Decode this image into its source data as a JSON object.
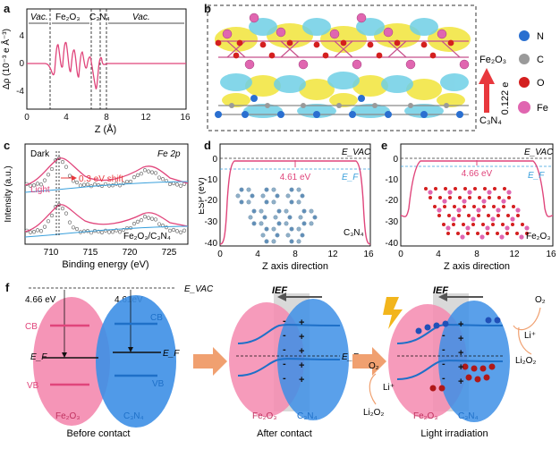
{
  "panel_labels": {
    "a": "a",
    "b": "b",
    "c": "c",
    "d": "d",
    "e": "e",
    "f": "f"
  },
  "colors": {
    "pink": "#e0457b",
    "blue": "#3aa0dc",
    "cyan": "#4fb6e8",
    "red": "#e8383d",
    "orange": "#f0a070"
  },
  "panel_a": {
    "ylabel": "Δρ (10⁻³ e Å⁻³)",
    "xlabel": "Z (Å)",
    "yticks": [
      "-4",
      "0",
      "4"
    ],
    "xticks": [
      "0",
      "4",
      "8",
      "12",
      "16"
    ],
    "region_vac_left": "Vac.",
    "region_fe2o3": "Fe₂O₃",
    "region_c3n4": "C₃N₄",
    "region_vac_right": "Vac."
  },
  "panel_b": {
    "label_top": "Fe₂O₃",
    "label_bottom": "C₃N₄",
    "charge": "0.122 e",
    "legend": [
      {
        "name": "N",
        "color": "#2a6fd0"
      },
      {
        "name": "C",
        "color": "#9a9a9a"
      },
      {
        "name": "O",
        "color": "#d41f1f"
      },
      {
        "name": "Fe",
        "color": "#e066b0"
      }
    ]
  },
  "panel_c": {
    "ylabel": "Intensity (a.u.)",
    "xlabel": "Binding energy (eV)",
    "xticks": [
      "710",
      "715",
      "720",
      "725"
    ],
    "title": "Fe 2p",
    "dark": "Dark",
    "light": "Light",
    "shift": "0.3 eV shift",
    "sample": "Fe₂O₃/C₃N₄"
  },
  "panel_d": {
    "ylabel": "ESP (eV)",
    "xlabel": "Z axis direction",
    "yticks": [
      "0",
      "-10",
      "-20",
      "-30",
      "-40"
    ],
    "xticks": [
      "0",
      "4",
      "8",
      "12",
      "16"
    ],
    "evac": "E_VAC",
    "ef": "E_F",
    "wf": "4.61 eV",
    "material": "C₃N₄"
  },
  "panel_e": {
    "xlabel": "Z axis direction",
    "yticks": [
      "0",
      "-10",
      "-20",
      "-30",
      "-40"
    ],
    "xticks": [
      "0",
      "4",
      "8",
      "12",
      "16"
    ],
    "evac": "E_VAC",
    "ef": "E_F",
    "wf": "4.66 eV",
    "material": "Fe₂O₃"
  },
  "panel_f": {
    "evac": "E_VAC",
    "wf_fe": "4.66 eV",
    "wf_cn": "4.61eV",
    "cb": "CB",
    "vb": "VB",
    "ef": "E_F",
    "fe2o3": "Fe₂O₃",
    "c3n4": "C₃N₄",
    "ief": "IEF",
    "caption_before": "Before contact",
    "caption_after": "After contact",
    "caption_light": "Light irradiation",
    "o2": "O₂",
    "li": "Li⁺",
    "li2o2": "Li₂O₂"
  }
}
